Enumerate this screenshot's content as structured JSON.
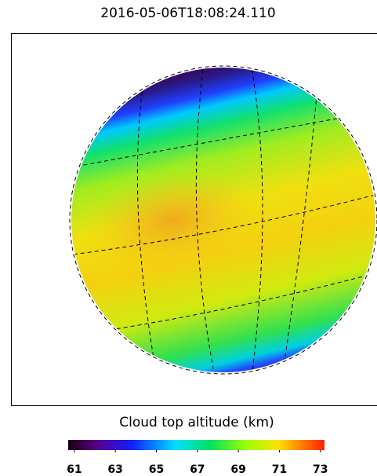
{
  "chart_data": {
    "type": "image",
    "title": "2016-05-06T18:08:24.110",
    "colorbar": {
      "label": "Cloud top altitude (km)",
      "lim": [
        60.7,
        73.2
      ],
      "ticks": [
        61,
        63,
        65,
        67,
        69,
        71,
        73
      ]
    }
  }
}
